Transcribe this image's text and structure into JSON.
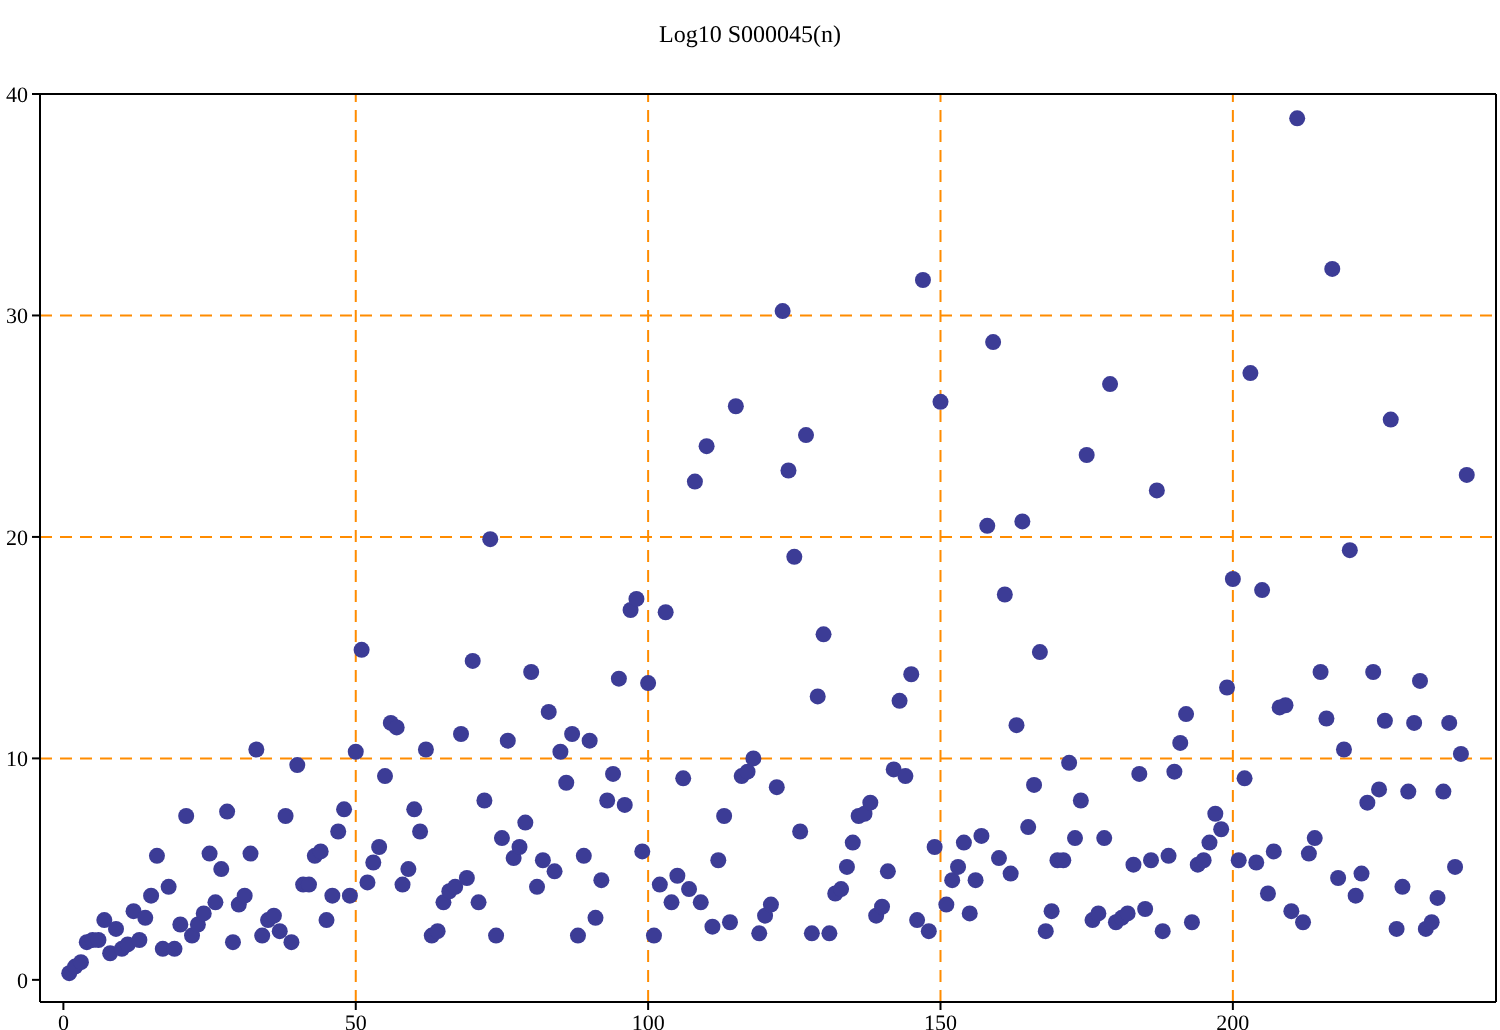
{
  "chart_data": {
    "type": "scatter",
    "title": "Log10 S000045(n)",
    "x": [
      1,
      2,
      3,
      4,
      5,
      6,
      7,
      8,
      9,
      10,
      11,
      12,
      13,
      14,
      15,
      16,
      17,
      18,
      19,
      20,
      21,
      22,
      23,
      24,
      25,
      26,
      27,
      28,
      29,
      30,
      31,
      32,
      33,
      34,
      35,
      36,
      37,
      38,
      39,
      40,
      41,
      42,
      43,
      44,
      45,
      46,
      47,
      48,
      49,
      50,
      51,
      52,
      53,
      54,
      55,
      56,
      57,
      58,
      59,
      60,
      61,
      62,
      63,
      64,
      65,
      66,
      67,
      68,
      69,
      70,
      71,
      72,
      73,
      74,
      75,
      76,
      77,
      78,
      79,
      80,
      81,
      82,
      83,
      84,
      85,
      86,
      87,
      88,
      89,
      90,
      91,
      92,
      93,
      94,
      95,
      96,
      97,
      98,
      99,
      100,
      101,
      102,
      103,
      104,
      105,
      106,
      107,
      108,
      109,
      110,
      111,
      112,
      113,
      114,
      115,
      116,
      117,
      118,
      119,
      120,
      121,
      122,
      123,
      124,
      125,
      126,
      127,
      128,
      129,
      130,
      131,
      132,
      133,
      134,
      135,
      136,
      137,
      138,
      139,
      140,
      141,
      142,
      143,
      144,
      145,
      146,
      147,
      148,
      149,
      150,
      151,
      152,
      153,
      154,
      155,
      156,
      157,
      158,
      159,
      160,
      161,
      162,
      163,
      164,
      165,
      166,
      167,
      168,
      169,
      170,
      171,
      172,
      173,
      174,
      175,
      176,
      177,
      178,
      179,
      180,
      181,
      182,
      183,
      184,
      185,
      186,
      187,
      188,
      189,
      190,
      191,
      192,
      193,
      194,
      195,
      196,
      197,
      198,
      199,
      200,
      201,
      202,
      203,
      204,
      205,
      206,
      207,
      208,
      209,
      210,
      211,
      212,
      213,
      214,
      215,
      216,
      217,
      218,
      219,
      220,
      221,
      222,
      223,
      224,
      225,
      226,
      227,
      228,
      229,
      230,
      231,
      232,
      233,
      234,
      235,
      236,
      237,
      238,
      239,
      240
    ],
    "series": [
      {
        "color": "#3c3c96",
        "values": [
          0.3,
          0.6,
          0.8,
          1.7,
          1.8,
          1.8,
          2.7,
          1.2,
          2.3,
          1.4,
          1.6,
          3.1,
          1.8,
          2.8,
          3.8,
          5.6,
          1.4,
          4.2,
          1.4,
          2.5,
          7.4,
          2.0,
          2.5,
          3.0,
          5.7,
          3.5,
          5.0,
          7.6,
          1.7,
          3.4,
          3.8,
          5.7,
          10.4,
          2.0,
          2.7,
          2.9,
          2.2,
          7.4,
          1.7,
          9.7,
          4.3,
          4.3,
          5.6,
          5.8,
          2.7,
          3.8,
          6.7,
          7.7,
          3.8,
          10.3,
          14.9,
          4.4,
          5.3,
          6.0,
          9.2,
          11.6,
          11.4,
          4.3,
          5.0,
          7.7,
          6.7,
          10.4,
          2.0,
          2.2,
          3.5,
          4.0,
          4.2,
          11.1,
          4.6,
          14.4,
          3.5,
          8.1,
          19.9,
          2.0,
          6.4,
          10.8,
          5.5,
          6.0,
          7.1,
          13.9,
          4.2,
          5.4,
          12.1,
          4.9,
          10.3,
          8.9,
          11.1,
          2.0,
          5.6,
          10.8,
          2.8,
          4.5,
          8.1,
          9.3,
          13.6,
          7.9,
          16.7,
          17.2,
          5.8,
          13.4,
          2.0,
          4.3,
          16.6,
          3.5,
          4.7,
          9.1,
          4.1,
          22.5,
          3.5,
          24.1,
          2.4,
          5.4,
          7.4,
          2.6,
          25.9,
          9.2,
          9.4,
          10.0,
          2.1,
          2.9,
          3.4,
          8.7,
          30.2,
          23.0,
          19.1,
          6.7,
          24.6,
          2.1,
          12.8,
          15.6,
          2.1,
          3.9,
          4.1,
          5.1,
          6.2,
          7.4,
          7.5,
          8.0,
          2.9,
          3.3,
          4.9,
          9.5,
          12.6,
          9.2,
          13.8,
          2.7,
          31.6,
          2.2,
          6.0,
          26.1,
          3.4,
          4.5,
          5.1,
          6.2,
          3.0,
          4.5,
          6.5,
          20.5,
          28.8,
          5.5,
          17.4,
          4.8,
          11.5,
          20.7,
          6.9,
          8.8,
          14.8,
          2.2,
          3.1,
          5.4,
          5.4,
          9.8,
          6.4,
          8.1,
          23.7,
          2.7,
          3.0,
          6.4,
          26.9,
          2.6,
          2.8,
          3.0,
          5.2,
          9.3,
          3.2,
          5.4,
          22.1,
          2.2,
          5.6,
          9.4,
          10.7,
          12.0,
          2.6,
          5.2,
          5.4,
          6.2,
          7.5,
          6.8,
          13.2,
          18.1,
          5.4,
          9.1,
          27.4,
          5.3,
          17.6,
          3.9,
          5.8,
          12.3,
          12.4,
          3.1,
          38.9,
          2.6,
          5.7,
          6.4,
          13.9,
          11.8,
          32.1,
          4.6,
          10.4,
          19.4,
          3.8,
          4.8,
          8.0,
          13.9,
          8.6,
          11.7,
          25.3,
          2.3,
          4.2,
          8.5,
          11.6,
          13.5,
          2.3,
          2.6,
          3.7,
          8.5,
          11.6,
          5.1,
          10.2,
          22.8
        ]
      }
    ],
    "xlim": [
      -4,
      245
    ],
    "ylim": [
      -1,
      40
    ],
    "xticks": [
      0,
      50,
      100,
      150,
      200
    ],
    "yticks": [
      0,
      10,
      20,
      30,
      40
    ],
    "marker": "circle",
    "grid": false,
    "ref_lines": [
      {
        "axis": "x",
        "value": 50,
        "color": "#ff8c00",
        "line_style": "dashed"
      },
      {
        "axis": "x",
        "value": 100,
        "color": "#ff8c00",
        "line_style": "dashed"
      },
      {
        "axis": "x",
        "value": 150,
        "color": "#ff8c00",
        "line_style": "dashed"
      },
      {
        "axis": "x",
        "value": 200,
        "color": "#ff8c00",
        "line_style": "dashed"
      },
      {
        "axis": "y",
        "value": 10,
        "color": "#ff8c00",
        "line_style": "dashed"
      },
      {
        "axis": "y",
        "value": 20,
        "color": "#ff8c00",
        "line_style": "dashed"
      },
      {
        "axis": "y",
        "value": 30,
        "color": "#ff8c00",
        "line_style": "dashed"
      }
    ]
  }
}
